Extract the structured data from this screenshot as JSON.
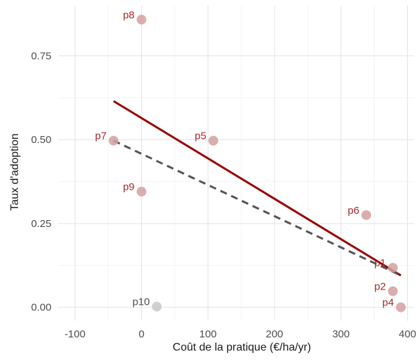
{
  "chart_data": {
    "type": "scatter",
    "xlabel": "Coût de la pratique (€/ha/yr)",
    "ylabel": "Taux d'adoption",
    "xlim": [
      -125,
      410
    ],
    "ylim": [
      -0.04,
      0.9
    ],
    "x_ticks": [
      -100,
      0,
      100,
      200,
      300,
      400
    ],
    "x_tick_labels": [
      "-100",
      "0",
      "100",
      "200",
      "300",
      "400"
    ],
    "y_ticks": [
      0,
      0.25,
      0.5,
      0.75
    ],
    "y_tick_labels": [
      "0.00",
      "0.25",
      "0.50",
      "0.75"
    ],
    "grid": true,
    "points": [
      {
        "label": "p1",
        "x": 378,
        "y": 0.118,
        "color": "#d4a0a0",
        "label_color": "#a52a2a"
      },
      {
        "label": "p2",
        "x": 378,
        "y": 0.048,
        "color": "#d4a0a0",
        "label_color": "#a52a2a"
      },
      {
        "label": "p4",
        "x": 390,
        "y": 0.0,
        "color": "#d4a0a0",
        "label_color": "#a52a2a"
      },
      {
        "label": "p5",
        "x": 108,
        "y": 0.497,
        "color": "#d4a0a0",
        "label_color": "#a52a2a"
      },
      {
        "label": "p6",
        "x": 338,
        "y": 0.275,
        "color": "#d4a0a0",
        "label_color": "#a52a2a"
      },
      {
        "label": "p7",
        "x": -42,
        "y": 0.497,
        "color": "#d4a0a0",
        "label_color": "#a52a2a"
      },
      {
        "label": "p8",
        "x": 0,
        "y": 0.858,
        "color": "#d4a0a0",
        "label_color": "#a52a2a"
      },
      {
        "label": "p9",
        "x": 0,
        "y": 0.345,
        "color": "#d4a0a0",
        "label_color": "#a52a2a"
      },
      {
        "label": "p10",
        "x": 23,
        "y": 0.002,
        "color": "#c8c8c8",
        "label_color": "#4d4d4d"
      }
    ],
    "lines": [
      {
        "style": "solid",
        "color": "#990000",
        "x": [
          -42,
          390
        ],
        "y": [
          0.615,
          0.095
        ]
      },
      {
        "style": "dashed",
        "color": "#555555",
        "x": [
          -42,
          390
        ],
        "y": [
          0.497,
          0.095
        ]
      }
    ]
  }
}
